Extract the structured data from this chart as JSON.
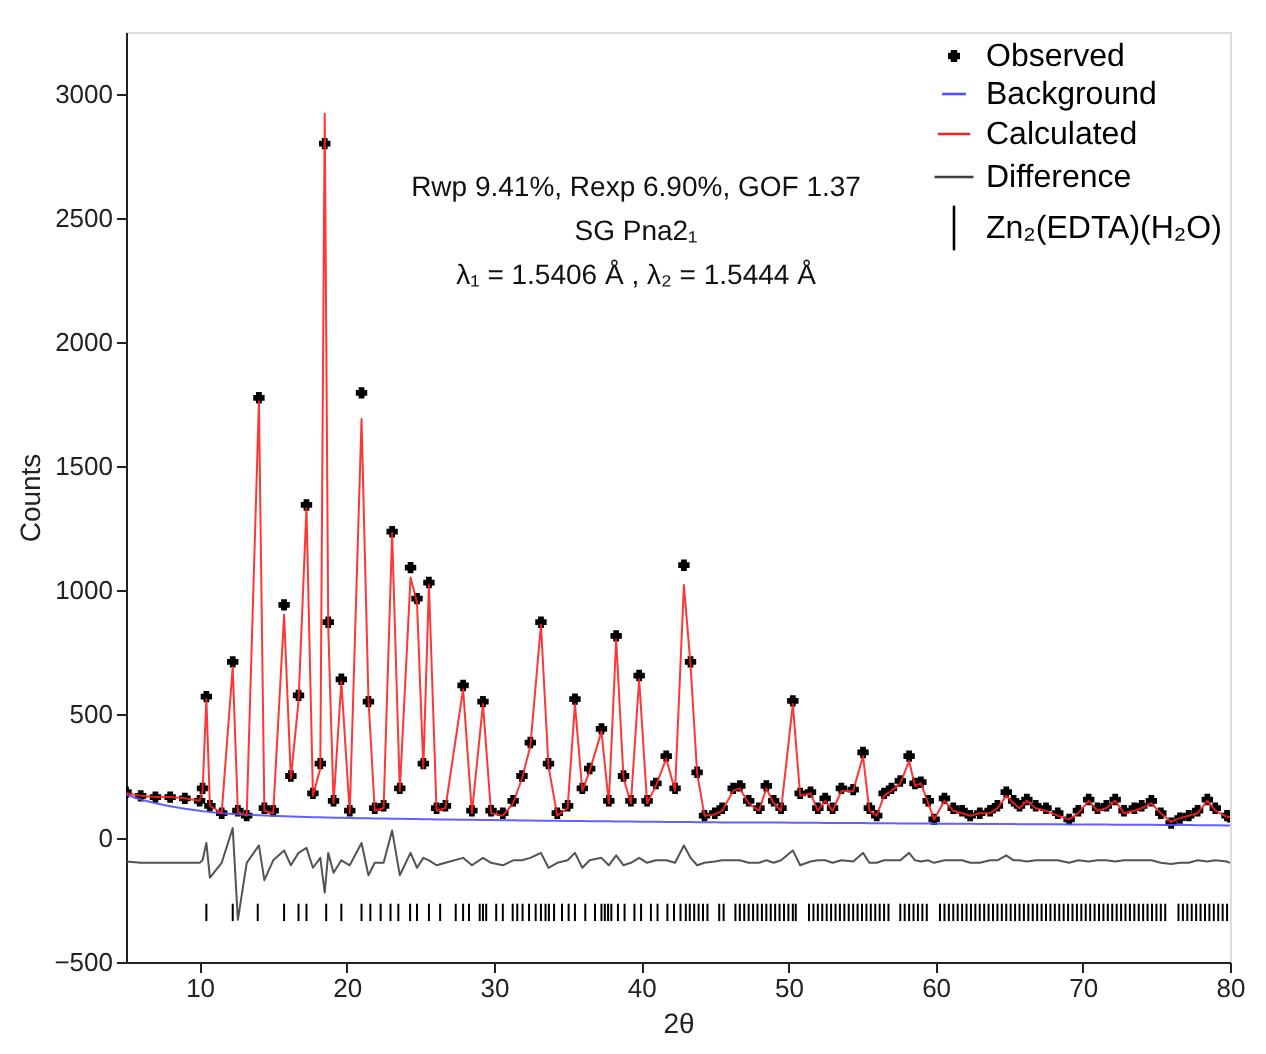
{
  "chart_data": {
    "type": "scatter",
    "xlabel": "2θ",
    "ylabel": "Counts",
    "annotations": [
      "Rwp 9.41%, Rexp 6.90%, GOF 1.37",
      "SG Pna2₁",
      "λ₁ = 1.5406 Å , λ₂ = 1.5444 Å"
    ],
    "xlim": [
      5,
      80
    ],
    "xticks": [
      10,
      20,
      30,
      40,
      50,
      60,
      70,
      80
    ],
    "ylim": [
      -500,
      3250
    ],
    "yticks": [
      -500,
      0,
      500,
      1000,
      1500,
      2000,
      2500,
      3000
    ],
    "grid": false,
    "legend": "top right",
    "x": [
      5.0,
      6.0,
      7.0,
      8.0,
      9.0,
      10.0,
      10.2,
      10.46,
      10.7,
      11.5,
      12.25,
      12.6,
      13.2,
      14.03,
      14.4,
      15.0,
      15.74,
      16.2,
      16.72,
      17.26,
      17.7,
      18.2,
      18.5,
      18.74,
      19.1,
      19.63,
      20.2,
      21.0,
      21.47,
      21.9,
      22.5,
      23.08,
      23.6,
      24.33,
      24.77,
      25.2,
      25.58,
      26.1,
      26.7,
      27.9,
      28.5,
      29.25,
      29.8,
      30.6,
      31.3,
      31.9,
      32.47,
      33.19,
      33.7,
      34.3,
      35.0,
      35.5,
      36.0,
      36.5,
      37.3,
      37.8,
      38.3,
      38.8,
      39.3,
      39.86,
      40.4,
      41.0,
      41.7,
      42.3,
      42.9,
      43.35,
      43.8,
      44.3,
      45.0,
      45.5,
      46.25,
      46.7,
      47.3,
      48.0,
      48.5,
      49.0,
      49.5,
      50.3,
      50.8,
      51.5,
      52.0,
      52.5,
      53.0,
      53.6,
      54.4,
      55.07,
      55.5,
      56.0,
      56.5,
      57.0,
      57.6,
      58.2,
      58.6,
      59.0,
      59.5,
      59.9,
      60.6,
      61.2,
      61.8,
      62.35,
      63.0,
      63.7,
      64.2,
      64.8,
      65.3,
      65.7,
      66.2,
      66.8,
      67.5,
      68.3,
      69.07,
      69.7,
      70.4,
      71.0,
      71.6,
      72.2,
      72.8,
      73.5,
      74.0,
      74.66,
      75.3,
      76.0,
      76.6,
      77.2,
      77.8,
      78.46,
      79.0,
      79.8,
      80.0
    ],
    "series": [
      {
        "name": "Observed",
        "marker": "cross",
        "color": "#000000",
        "values": [
          185,
          170,
          165,
          165,
          160,
          150,
          200,
          570,
          130,
          100,
          710,
          110,
          90,
          1775,
          120,
          110,
          940,
          250,
          575,
          1343,
          180,
          300,
          2800,
          870,
          150,
          640,
          110,
          1795,
          550,
          120,
          130,
          1235,
          200,
          1090,
          965,
          300,
          1030,
          120,
          130,
          615,
          110,
          550,
          110,
          100,
          150,
          250,
          385,
          870,
          300,
          100,
          130,
          560,
          200,
          280,
          440,
          150,
          815,
          250,
          150,
          655,
          150,
          220,
          330,
          200,
          1100,
          710,
          265,
          90,
          100,
          120,
          200,
          210,
          150,
          120,
          210,
          150,
          120,
          553,
          180,
          185,
          120,
          160,
          120,
          200,
          195,
          345,
          120,
          90,
          180,
          200,
          230,
          330,
          220,
          225,
          150,
          75,
          160,
          120,
          110,
          90,
          100,
          110,
          130,
          185,
          150,
          130,
          155,
          130,
          120,
          100,
          75,
          110,
          155,
          120,
          130,
          155,
          110,
          120,
          130,
          150,
          100,
          60,
          80,
          90,
          110,
          155,
          120,
          90,
          85
        ]
      },
      {
        "name": "Background",
        "type": "line",
        "color": "#5050ff",
        "values": [
          175,
          155,
          140,
          128,
          118,
          110,
          108,
          107,
          105,
          100,
          97,
          96,
          94,
          92,
          91,
          90,
          88,
          87,
          86,
          85,
          84,
          84,
          83,
          83,
          82,
          82,
          81,
          80,
          80,
          79,
          79,
          78,
          78,
          77,
          77,
          76,
          76,
          75,
          75,
          74,
          74,
          73,
          73,
          72,
          72,
          71,
          71,
          70,
          70,
          70,
          69,
          69,
          69,
          68,
          68,
          68,
          67,
          67,
          67,
          66,
          66,
          66,
          65,
          65,
          65,
          65,
          64,
          64,
          64,
          63,
          63,
          63,
          63,
          62,
          62,
          62,
          62,
          61,
          61,
          61,
          61,
          60,
          60,
          60,
          60,
          60,
          59,
          59,
          59,
          59,
          58,
          58,
          58,
          58,
          58,
          57,
          57,
          57,
          57,
          57,
          56,
          56,
          56,
          56,
          56,
          55,
          55,
          55,
          55,
          55,
          54,
          54,
          54,
          54,
          54,
          53,
          53,
          53,
          53,
          53,
          52,
          52,
          52,
          52,
          51,
          51,
          51,
          50,
          50
        ]
      },
      {
        "name": "Calculated",
        "type": "line",
        "color": "#ff2020",
        "values": [
          180,
          170,
          165,
          165,
          160,
          150,
          190,
          560,
          130,
          100,
          690,
          105,
          90,
          1760,
          110,
          100,
          900,
          240,
          550,
          1330,
          170,
          280,
          2920,
          850,
          140,
          630,
          100,
          1690,
          560,
          110,
          120,
          1230,
          190,
          1050,
          950,
          280,
          1020,
          110,
          120,
          600,
          100,
          540,
          100,
          90,
          140,
          240,
          370,
          860,
          290,
          90,
          120,
          540,
          190,
          270,
          430,
          140,
          800,
          240,
          140,
          640,
          140,
          210,
          320,
          190,
          1020,
          700,
          260,
          90,
          95,
          110,
          190,
          200,
          140,
          110,
          200,
          140,
          110,
          540,
          170,
          180,
          110,
          150,
          110,
          190,
          190,
          330,
          110,
          90,
          170,
          190,
          220,
          310,
          210,
          220,
          140,
          75,
          150,
          110,
          100,
          90,
          100,
          100,
          120,
          170,
          140,
          120,
          150,
          120,
          110,
          90,
          75,
          100,
          150,
          110,
          120,
          150,
          100,
          110,
          120,
          140,
          100,
          65,
          80,
          90,
          100,
          150,
          110,
          85,
          85
        ]
      },
      {
        "name": "Difference",
        "type": "line",
        "color": "#404040",
        "values": [
          -95,
          -100,
          -100,
          -100,
          -100,
          -100,
          -90,
          -20,
          -160,
          -100,
          40,
          -330,
          -100,
          -30,
          -170,
          -90,
          -50,
          -110,
          -60,
          -40,
          -120,
          -80,
          -220,
          -60,
          -140,
          -90,
          -110,
          -20,
          -150,
          -100,
          -100,
          30,
          -150,
          -60,
          -120,
          -80,
          -90,
          -110,
          -100,
          -80,
          -110,
          -80,
          -100,
          -110,
          -90,
          -90,
          -80,
          -60,
          -120,
          -100,
          -90,
          -60,
          -120,
          -90,
          -80,
          -110,
          -70,
          -110,
          -100,
          -80,
          -100,
          -90,
          -90,
          -100,
          -30,
          -80,
          -110,
          -100,
          -95,
          -90,
          -90,
          -90,
          -100,
          -100,
          -90,
          -100,
          -90,
          -50,
          -110,
          -95,
          -90,
          -90,
          -100,
          -90,
          -95,
          -60,
          -100,
          -100,
          -90,
          -90,
          -90,
          -60,
          -90,
          -95,
          -90,
          -100,
          -90,
          -90,
          -90,
          -100,
          -100,
          -90,
          -90,
          -70,
          -90,
          -90,
          -95,
          -90,
          -90,
          -90,
          -100,
          -90,
          -95,
          -90,
          -90,
          -95,
          -90,
          -90,
          -90,
          -90,
          -100,
          -105,
          -100,
          -100,
          -90,
          -95,
          -90,
          -95,
          -100
        ]
      },
      {
        "name": "Zn₂(EDTA)(H₂O)",
        "type": "bar",
        "base": [
          -335,
          -335,
          -335,
          -335,
          -335,
          -335,
          -335,
          -335,
          -335,
          -335,
          -335,
          -335,
          -335,
          -335,
          -335,
          -335,
          -335,
          -335,
          -335,
          -335,
          -335,
          -335,
          -335,
          -335,
          -335,
          -335,
          -335,
          -335,
          -335,
          -335,
          -335,
          -335,
          -335,
          -335,
          -335,
          -335,
          -335,
          -335,
          -335,
          -335,
          -335,
          -335,
          -335,
          -335,
          -335,
          -335,
          -335,
          -335,
          -335,
          -335,
          -335,
          -335,
          -335,
          -335,
          -335,
          -335,
          -335,
          -335,
          -335,
          -335,
          -335,
          -335,
          -335,
          -335,
          -335,
          -335,
          -335,
          -335,
          -335,
          -335,
          -335,
          -335,
          -335,
          -335,
          -335,
          -335,
          -335,
          -335,
          -335,
          -335,
          -335,
          -335,
          -335,
          -335,
          -335,
          -335,
          -335,
          -335,
          -335,
          -335,
          -335,
          -335,
          -335,
          -335,
          -335,
          -335,
          -335,
          -335,
          -335,
          -335,
          -335,
          -335,
          -335,
          -335,
          -335,
          -335,
          -335,
          -335,
          -335,
          -335,
          -335,
          -335,
          -335,
          -335,
          -335,
          -335,
          -335,
          -335,
          -335,
          -335,
          -335,
          -335,
          -335,
          -335,
          -335,
          -335,
          -335,
          -335,
          -335,
          -335,
          -335,
          -335,
          -335,
          -335,
          -335,
          -335,
          -335,
          -335,
          -335,
          -335,
          -335,
          -335,
          -335,
          -335,
          -335,
          -335,
          -335,
          -335,
          -335,
          -335,
          -335,
          -335,
          -335,
          -335,
          -335,
          -335,
          -335,
          -335,
          -335,
          -335,
          -335,
          -335,
          -335,
          -335,
          -335
        ],
        "color": "#000000",
        "x": [
          10.46,
          12.25,
          13.95,
          15.74,
          16.72,
          17.26,
          18.6,
          19.63,
          21.0,
          21.6,
          22.3,
          22.97,
          23.5,
          24.3,
          24.77,
          25.58,
          26.34,
          27.4,
          27.9,
          28.3,
          29.03,
          29.25,
          29.47,
          30.15,
          30.6,
          31.27,
          31.58,
          31.94,
          32.38,
          32.83,
          33.19,
          33.5,
          33.73,
          34.08,
          34.62,
          35.07,
          35.5,
          36.2,
          36.86,
          37.3,
          37.53,
          37.75,
          37.97,
          38.42,
          38.87,
          39.54,
          39.99,
          40.66,
          41.11,
          41.78,
          42.23,
          42.67,
          43.03,
          43.3,
          43.6,
          43.9,
          44.2,
          44.5,
          45.3,
          45.6,
          46.4,
          46.7,
          47.0,
          47.3,
          47.6,
          47.9,
          48.2,
          48.5,
          48.8,
          49.1,
          49.4,
          49.7,
          50.0,
          50.3,
          50.5,
          51.4,
          51.7,
          52.0,
          52.3,
          52.6,
          52.9,
          53.2,
          53.5,
          53.8,
          54.1,
          54.4,
          54.7,
          55.0,
          55.3,
          55.6,
          55.9,
          56.2,
          56.5,
          56.8,
          57.6,
          57.9,
          58.2,
          58.5,
          58.8,
          59.1,
          59.4,
          60.3,
          60.6,
          60.9,
          61.2,
          61.5,
          61.8,
          62.1,
          62.4,
          62.7,
          63.0,
          63.3,
          63.6,
          63.9,
          64.2,
          64.5,
          64.8,
          65.1,
          65.4,
          65.7,
          66.0,
          66.3,
          66.6,
          66.9,
          67.2,
          67.5,
          67.8,
          68.1,
          68.4,
          68.7,
          69.0,
          69.3,
          69.6,
          69.9,
          70.2,
          70.5,
          70.8,
          71.1,
          71.4,
          71.7,
          72.0,
          72.3,
          72.6,
          72.9,
          73.2,
          73.5,
          73.8,
          74.1,
          74.4,
          74.7,
          75.0,
          75.3,
          75.6,
          76.5,
          76.8,
          77.1,
          77.4,
          77.7,
          78.0,
          78.3,
          78.6,
          78.9,
          79.2,
          79.5,
          79.8
        ],
        "values": [
          70,
          70,
          70,
          70,
          70,
          70,
          70,
          70,
          70,
          70,
          70,
          70,
          70,
          70,
          70,
          70,
          70,
          70,
          70,
          70,
          70,
          70,
          70,
          70,
          70,
          70,
          70,
          70,
          70,
          70,
          70,
          70,
          70,
          70,
          70,
          70,
          70,
          70,
          70,
          70,
          70,
          70,
          70,
          70,
          70,
          70,
          70,
          70,
          70,
          70,
          70,
          70,
          70,
          70,
          70,
          70,
          70,
          70,
          70,
          70,
          70,
          70,
          70,
          70,
          70,
          70,
          70,
          70,
          70,
          70,
          70,
          70,
          70,
          70,
          70,
          70,
          70,
          70,
          70,
          70,
          70,
          70,
          70,
          70,
          70,
          70,
          70,
          70,
          70,
          70,
          70,
          70,
          70,
          70,
          70,
          70,
          70,
          70,
          70,
          70,
          70,
          70,
          70,
          70,
          70,
          70,
          70,
          70,
          70,
          70,
          70,
          70,
          70,
          70,
          70,
          70,
          70,
          70,
          70,
          70,
          70,
          70,
          70,
          70,
          70,
          70,
          70,
          70,
          70,
          70,
          70,
          70,
          70,
          70,
          70,
          70,
          70,
          70,
          70,
          70,
          70,
          70,
          70,
          70,
          70,
          70,
          70,
          70,
          70,
          70,
          70,
          70,
          70,
          70,
          70,
          70,
          70,
          70,
          70,
          70,
          70,
          70,
          70,
          70,
          70
        ]
      }
    ]
  }
}
